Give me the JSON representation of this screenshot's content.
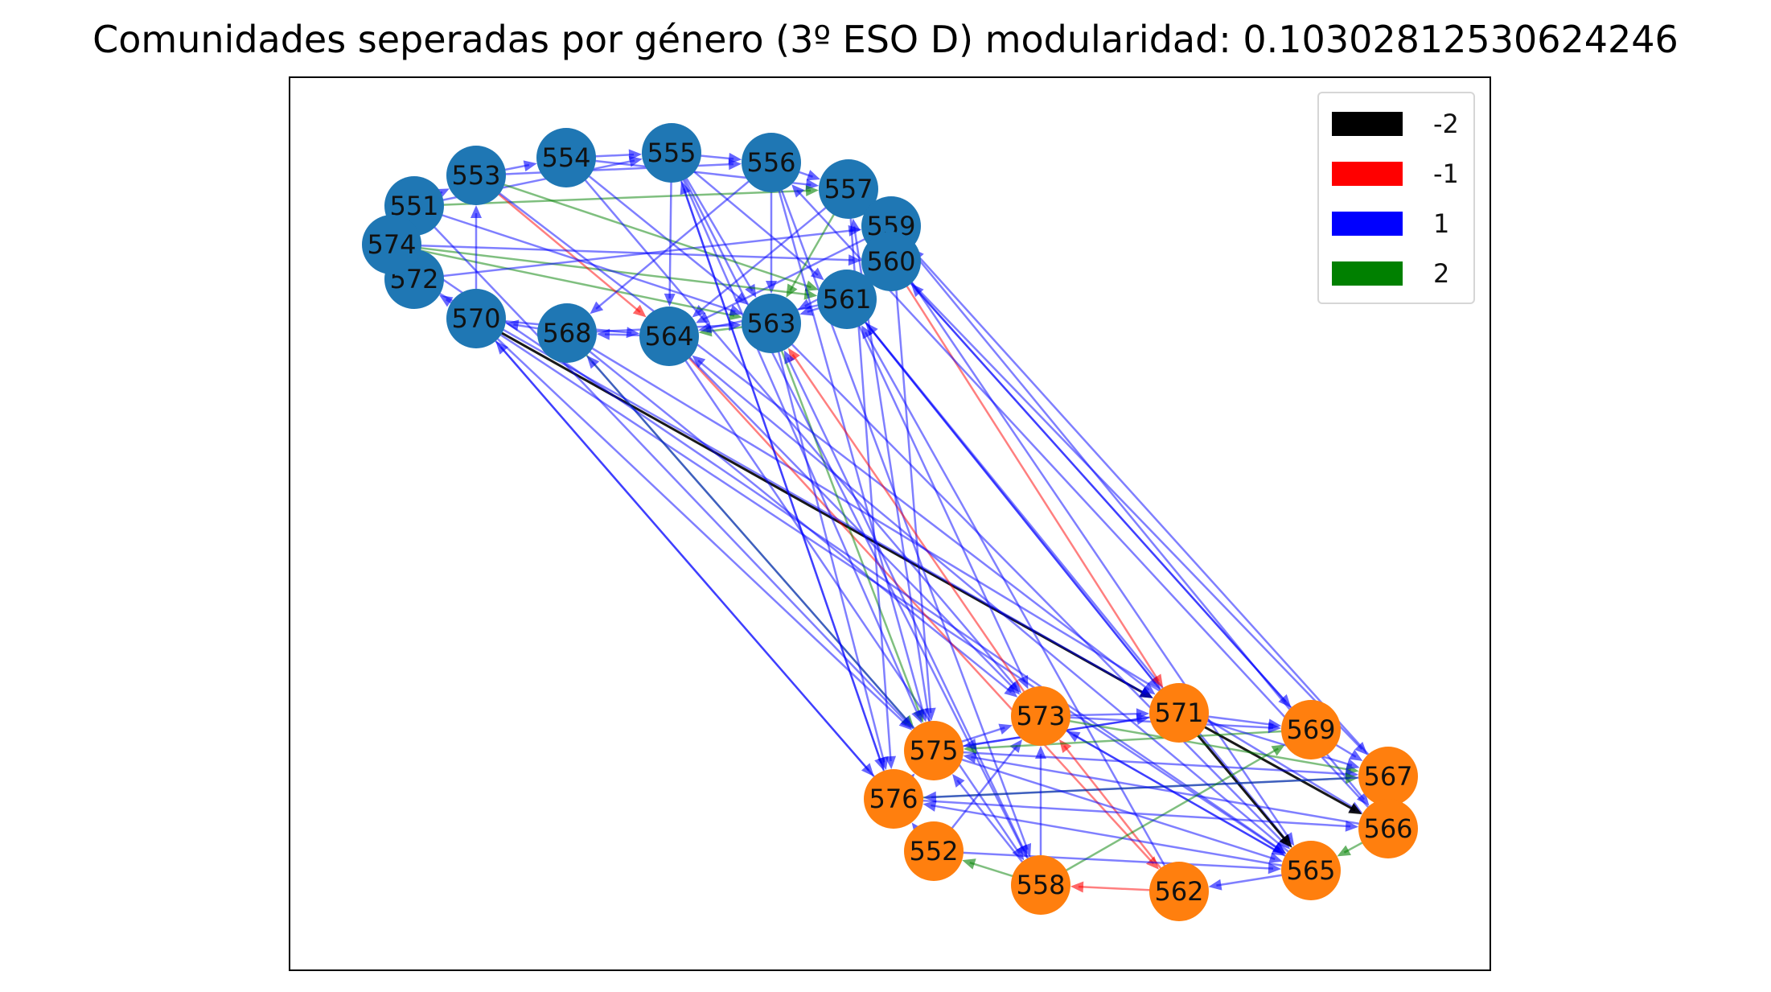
{
  "title": "Comunidades seperadas por género (3º ESO D) modularidad: 0.10302812530624246",
  "legend": [
    {
      "label": "-2",
      "color": "#000000"
    },
    {
      "label": "-1",
      "color": "#ff0000"
    },
    {
      "label": "1",
      "color": "#0000ff"
    },
    {
      "label": "2",
      "color": "#008000"
    }
  ],
  "community_colors": {
    "a": "#1f77b4",
    "b": "#ff7f0e"
  },
  "nodes": [
    {
      "id": "551",
      "community": "a"
    },
    {
      "id": "553",
      "community": "a"
    },
    {
      "id": "554",
      "community": "a"
    },
    {
      "id": "555",
      "community": "a"
    },
    {
      "id": "556",
      "community": "a"
    },
    {
      "id": "557",
      "community": "a"
    },
    {
      "id": "559",
      "community": "a"
    },
    {
      "id": "560",
      "community": "a"
    },
    {
      "id": "561",
      "community": "a"
    },
    {
      "id": "563",
      "community": "a"
    },
    {
      "id": "564",
      "community": "a"
    },
    {
      "id": "568",
      "community": "a"
    },
    {
      "id": "570",
      "community": "a"
    },
    {
      "id": "572",
      "community": "a"
    },
    {
      "id": "574",
      "community": "a"
    },
    {
      "id": "571",
      "community": "b"
    },
    {
      "id": "573",
      "community": "b"
    },
    {
      "id": "569",
      "community": "b"
    },
    {
      "id": "567",
      "community": "b"
    },
    {
      "id": "566",
      "community": "b"
    },
    {
      "id": "565",
      "community": "b"
    },
    {
      "id": "575",
      "community": "b"
    },
    {
      "id": "576",
      "community": "b"
    },
    {
      "id": "552",
      "community": "b"
    },
    {
      "id": "558",
      "community": "b"
    },
    {
      "id": "562",
      "community": "b"
    }
  ],
  "edges": [
    [
      "551",
      "553",
      1
    ],
    [
      "553",
      "554",
      1
    ],
    [
      "554",
      "555",
      1
    ],
    [
      "555",
      "556",
      1
    ],
    [
      "556",
      "557",
      1
    ],
    [
      "557",
      "559",
      1
    ],
    [
      "559",
      "560",
      1
    ],
    [
      "560",
      "561",
      1
    ],
    [
      "561",
      "563",
      1
    ],
    [
      "563",
      "564",
      2
    ],
    [
      "564",
      "568",
      1
    ],
    [
      "568",
      "570",
      1
    ],
    [
      "570",
      "572",
      1
    ],
    [
      "572",
      "574",
      1
    ],
    [
      "574",
      "551",
      1
    ],
    [
      "551",
      "555",
      1
    ],
    [
      "553",
      "556",
      1
    ],
    [
      "554",
      "557",
      1
    ],
    [
      "555",
      "561",
      1
    ],
    [
      "555",
      "563",
      1
    ],
    [
      "556",
      "563",
      1
    ],
    [
      "557",
      "564",
      1
    ],
    [
      "559",
      "564",
      1
    ],
    [
      "560",
      "563",
      1
    ],
    [
      "561",
      "564",
      1
    ],
    [
      "574",
      "561",
      2
    ],
    [
      "574",
      "563",
      2
    ],
    [
      "551",
      "557",
      2
    ],
    [
      "553",
      "564",
      -1
    ],
    [
      "570",
      "564",
      1
    ],
    [
      "572",
      "559",
      1
    ],
    [
      "574",
      "560",
      1
    ],
    [
      "554",
      "563",
      1
    ],
    [
      "553",
      "561",
      2
    ],
    [
      "555",
      "564",
      1
    ],
    [
      "556",
      "568",
      1
    ],
    [
      "557",
      "563",
      2
    ],
    [
      "568",
      "563",
      1
    ],
    [
      "570",
      "553",
      1
    ],
    [
      "551",
      "563",
      1
    ],
    [
      "570",
      "571",
      -2
    ],
    [
      "570",
      "575",
      1
    ],
    [
      "570",
      "576",
      1
    ],
    [
      "570",
      "565",
      1
    ],
    [
      "568",
      "573",
      1
    ],
    [
      "568",
      "566",
      1
    ],
    [
      "568",
      "575",
      2
    ],
    [
      "564",
      "562",
      -1
    ],
    [
      "564",
      "558",
      1
    ],
    [
      "564",
      "573",
      1
    ],
    [
      "563",
      "575",
      2
    ],
    [
      "563",
      "565",
      1
    ],
    [
      "563",
      "576",
      1
    ],
    [
      "561",
      "571",
      1
    ],
    [
      "561",
      "565",
      1
    ],
    [
      "561",
      "573",
      1
    ],
    [
      "560",
      "569",
      1
    ],
    [
      "560",
      "567",
      1
    ],
    [
      "560",
      "571",
      -1
    ],
    [
      "559",
      "566",
      1
    ],
    [
      "559",
      "575",
      1
    ],
    [
      "557",
      "565",
      1
    ],
    [
      "557",
      "576",
      1
    ],
    [
      "556",
      "575",
      1
    ],
    [
      "556",
      "558",
      1
    ],
    [
      "555",
      "575",
      1
    ],
    [
      "555",
      "576",
      1
    ],
    [
      "555",
      "558",
      1
    ],
    [
      "554",
      "573",
      1
    ],
    [
      "553",
      "571",
      1
    ],
    [
      "551",
      "575",
      1
    ],
    [
      "574",
      "565",
      1
    ],
    [
      "572",
      "571",
      1
    ],
    [
      "576",
      "570",
      1
    ],
    [
      "575",
      "568",
      1
    ],
    [
      "573",
      "563",
      -1
    ],
    [
      "571",
      "561",
      1
    ],
    [
      "569",
      "560",
      1
    ],
    [
      "567",
      "559",
      1
    ],
    [
      "565",
      "564",
      1
    ],
    [
      "558",
      "563",
      1
    ],
    [
      "562",
      "561",
      1
    ],
    [
      "566",
      "556",
      1
    ],
    [
      "576",
      "555",
      1
    ],
    [
      "575",
      "557",
      1
    ],
    [
      "575",
      "573",
      1
    ],
    [
      "573",
      "571",
      1
    ],
    [
      "571",
      "569",
      1
    ],
    [
      "569",
      "567",
      1
    ],
    [
      "567",
      "566",
      2
    ],
    [
      "566",
      "565",
      2
    ],
    [
      "565",
      "562",
      1
    ],
    [
      "562",
      "558",
      -1
    ],
    [
      "558",
      "552",
      2
    ],
    [
      "552",
      "576",
      1
    ],
    [
      "576",
      "575",
      1
    ],
    [
      "575",
      "571",
      1
    ],
    [
      "573",
      "565",
      1
    ],
    [
      "571",
      "566",
      -2
    ],
    [
      "571",
      "565",
      -2
    ],
    [
      "573",
      "567",
      2
    ],
    [
      "575",
      "567",
      1
    ],
    [
      "576",
      "567",
      2
    ],
    [
      "552",
      "573",
      1
    ],
    [
      "558",
      "575",
      1
    ],
    [
      "558",
      "573",
      1
    ],
    [
      "562",
      "573",
      -1
    ],
    [
      "565",
      "573",
      1
    ],
    [
      "566",
      "575",
      1
    ],
    [
      "569",
      "575",
      2
    ],
    [
      "567",
      "576",
      1
    ],
    [
      "565",
      "576",
      1
    ],
    [
      "558",
      "569",
      2
    ],
    [
      "552",
      "565",
      1
    ],
    [
      "571",
      "575",
      1
    ],
    [
      "573",
      "569",
      1
    ],
    [
      "576",
      "566",
      1
    ],
    [
      "575",
      "565",
      1
    ],
    [
      "571",
      "567",
      1
    ]
  ]
}
